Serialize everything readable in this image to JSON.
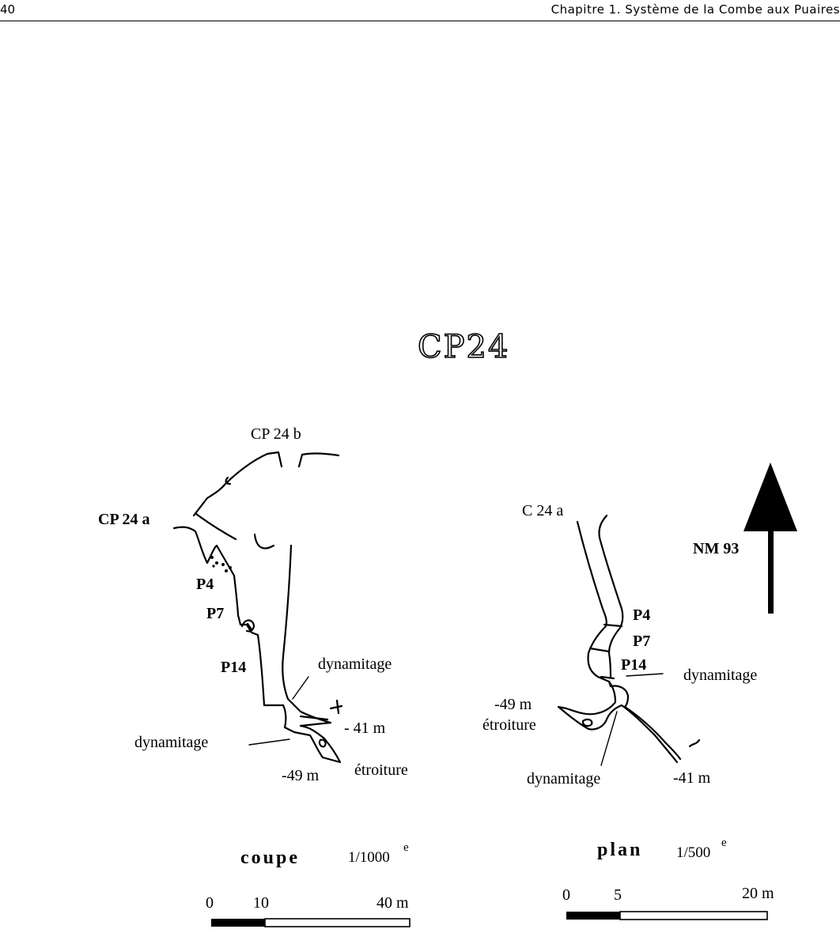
{
  "header": {
    "page_number": "40",
    "chapter_title": "Chapitre 1.  Système de la Combe aux Puaires"
  },
  "figure": {
    "title": "CP24",
    "section": {
      "entrance_a": "CP 24 a",
      "entrance_b": "CP 24 b",
      "pitch_p4": "P4",
      "pitch_p7": "P7",
      "pitch_p14": "P14",
      "dynamitage_1": "dynamitage",
      "dynamitage_2": "dynamitage",
      "depth_41": "- 41 m",
      "depth_49": "-49 m",
      "etroiture": "étroiture",
      "scale_label": "coupe",
      "scale_ratio": "1/1000",
      "scale_sup": "e",
      "scale_ticks": [
        "0",
        "10",
        "40 m"
      ]
    },
    "plan": {
      "entrance": "C 24 a",
      "pitch_p4": "P4",
      "pitch_p7": "P7",
      "pitch_p14": "P14",
      "dynamitage_1": "dynamitage",
      "dynamitage_2": "dynamitage",
      "depth_49": "-49 m",
      "etroiture": "étroiture",
      "depth_41": "-41 m",
      "north_label": "NM  93",
      "scale_label": "plan",
      "scale_ratio": "1/500",
      "scale_sup": "e",
      "scale_ticks": [
        "0",
        "5",
        "20 m"
      ]
    }
  }
}
